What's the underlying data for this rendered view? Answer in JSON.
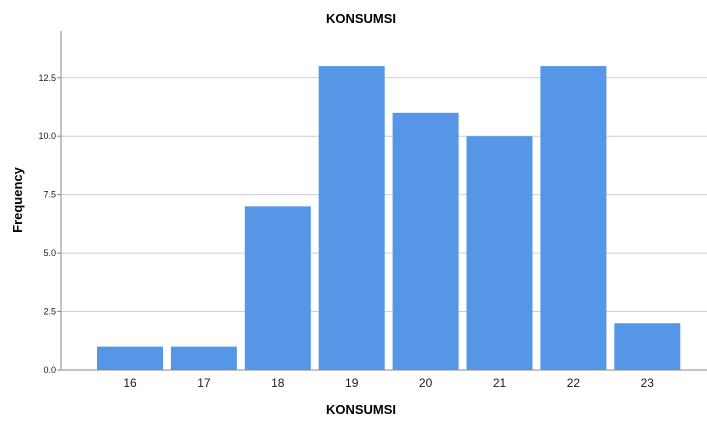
{
  "chart_data": {
    "type": "bar",
    "title": "KONSUMSI",
    "xlabel": "KONSUMSI",
    "ylabel": "Frequency",
    "categories": [
      "16",
      "17",
      "18",
      "19",
      "20",
      "21",
      "22",
      "23"
    ],
    "values": [
      1,
      1,
      7,
      13,
      11,
      10,
      13,
      2
    ],
    "ylim": [
      0,
      14.5
    ],
    "y_ticks": [
      "0.0",
      "2.5",
      "5.0",
      "7.5",
      "10.0",
      "12.5"
    ],
    "grid": "horizontal",
    "bar_color": "#5596E6",
    "legend": "none"
  }
}
